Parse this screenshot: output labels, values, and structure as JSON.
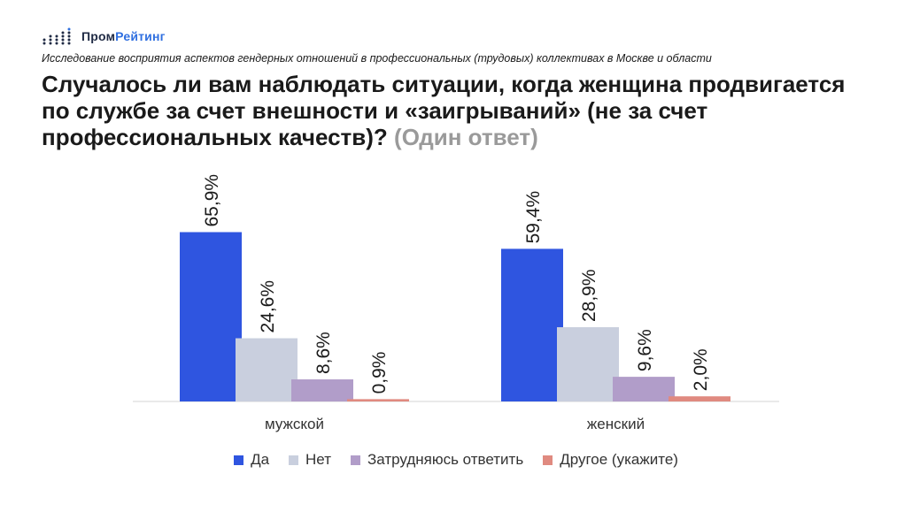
{
  "header": {
    "brand_part1": "Пром",
    "brand_part2": "Рейтинг",
    "subtitle": "Исследование восприятия аспектов гендерных отношений в профессиональных (трудовых) коллективах в Москве и области",
    "title_main": "Случалось ли вам наблюдать ситуации, когда женщина продвигается по службе за счет внешности и «заигрываний» (не за счет профессиональных качеств)?",
    "title_note": "(Один ответ)"
  },
  "chart_data": {
    "type": "bar",
    "categories": [
      "мужской",
      "женский"
    ],
    "series": [
      {
        "name": "Да",
        "values": [
          65.9,
          59.4
        ],
        "labels": [
          "65,9%",
          "59,4%"
        ],
        "color": "#2f55e0"
      },
      {
        "name": "Нет",
        "values": [
          24.6,
          28.9
        ],
        "labels": [
          "24,6%",
          "28,9%"
        ],
        "color": "#c9cfde"
      },
      {
        "name": "Затрудняюсь ответить",
        "values": [
          8.6,
          9.6
        ],
        "labels": [
          "8,6%",
          "9,6%"
        ],
        "color": "#b19dc9"
      },
      {
        "name": "Другое (укажите)",
        "values": [
          0.9,
          2.0
        ],
        "labels": [
          "0,9%",
          "2,0%"
        ],
        "color": "#e08a80"
      }
    ],
    "ylim": [
      0,
      70
    ],
    "grid": false,
    "legend_position": "bottom",
    "label_orientation": "vertical"
  }
}
